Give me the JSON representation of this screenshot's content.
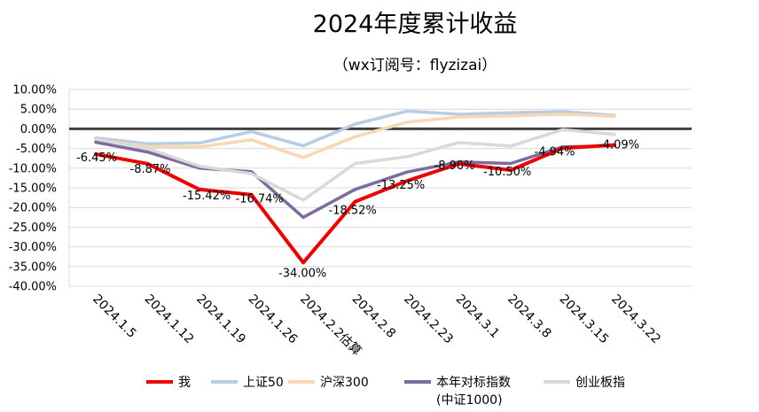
{
  "chart_data": {
    "type": "line",
    "title": "2024年度累计收益",
    "subtitle": "（wx订阅号：flyzizai）",
    "categories": [
      "2024.1.5",
      "2024.1.12",
      "2024.1.19",
      "2024.1.26",
      "2024.2.2估算",
      "2024.2.8",
      "2024.2.23",
      "2024.3.1",
      "2024.3.8",
      "2024.3.15",
      "2024.3.22"
    ],
    "y_ticks": [
      "10.00%",
      "5.00%",
      "0.00%",
      "-5.00%",
      "-10.00%",
      "-15.00%",
      "-20.00%",
      "-25.00%",
      "-30.00%",
      "-35.00%",
      "-40.00%"
    ],
    "ylim": [
      -40,
      10
    ],
    "unit": "%",
    "grid": true,
    "legend_position": "bottom",
    "series": [
      {
        "name": "上证50",
        "color": "#b8cce4",
        "values": [
          -2.3,
          -3.8,
          -3.6,
          -0.7,
          -4.3,
          1.2,
          4.5,
          3.7,
          4.1,
          4.4,
          3.4
        ]
      },
      {
        "name": "沪深300",
        "color": "#fad7b3",
        "values": [
          -2.8,
          -4.5,
          -4.6,
          -2.8,
          -7.3,
          -2.0,
          1.7,
          3.0,
          3.3,
          3.7,
          3.2
        ]
      },
      {
        "name": "本年对标指数",
        "name_line2": "(中证1000)",
        "color": "#7f6a9e",
        "values": [
          -3.4,
          -5.9,
          -10.0,
          -10.9,
          -22.5,
          -15.4,
          -11.0,
          -8.4,
          -8.8,
          -4.6,
          -4.3
        ]
      },
      {
        "name": "创业板指",
        "color": "#d9d9d9",
        "values": [
          -2.6,
          -5.0,
          -9.5,
          -11.4,
          -18.1,
          -8.8,
          -7.1,
          -3.5,
          -4.4,
          -0.2,
          -1.4
        ]
      },
      {
        "name": "我",
        "color": "#ee0000",
        "values": [
          -6.45,
          -8.87,
          -15.42,
          -16.74,
          -34.0,
          -18.52,
          -13.25,
          -8.9,
          -10.5,
          -4.94,
          -4.09
        ],
        "labels": [
          "-6.45%",
          "-8.87%",
          "-15.42%",
          "-16.74%",
          "-34.00%",
          "-18.52%",
          "-13.25%",
          "-8.90%",
          "-10.50%",
          "-4.94%",
          "-4.09%"
        ]
      }
    ]
  }
}
